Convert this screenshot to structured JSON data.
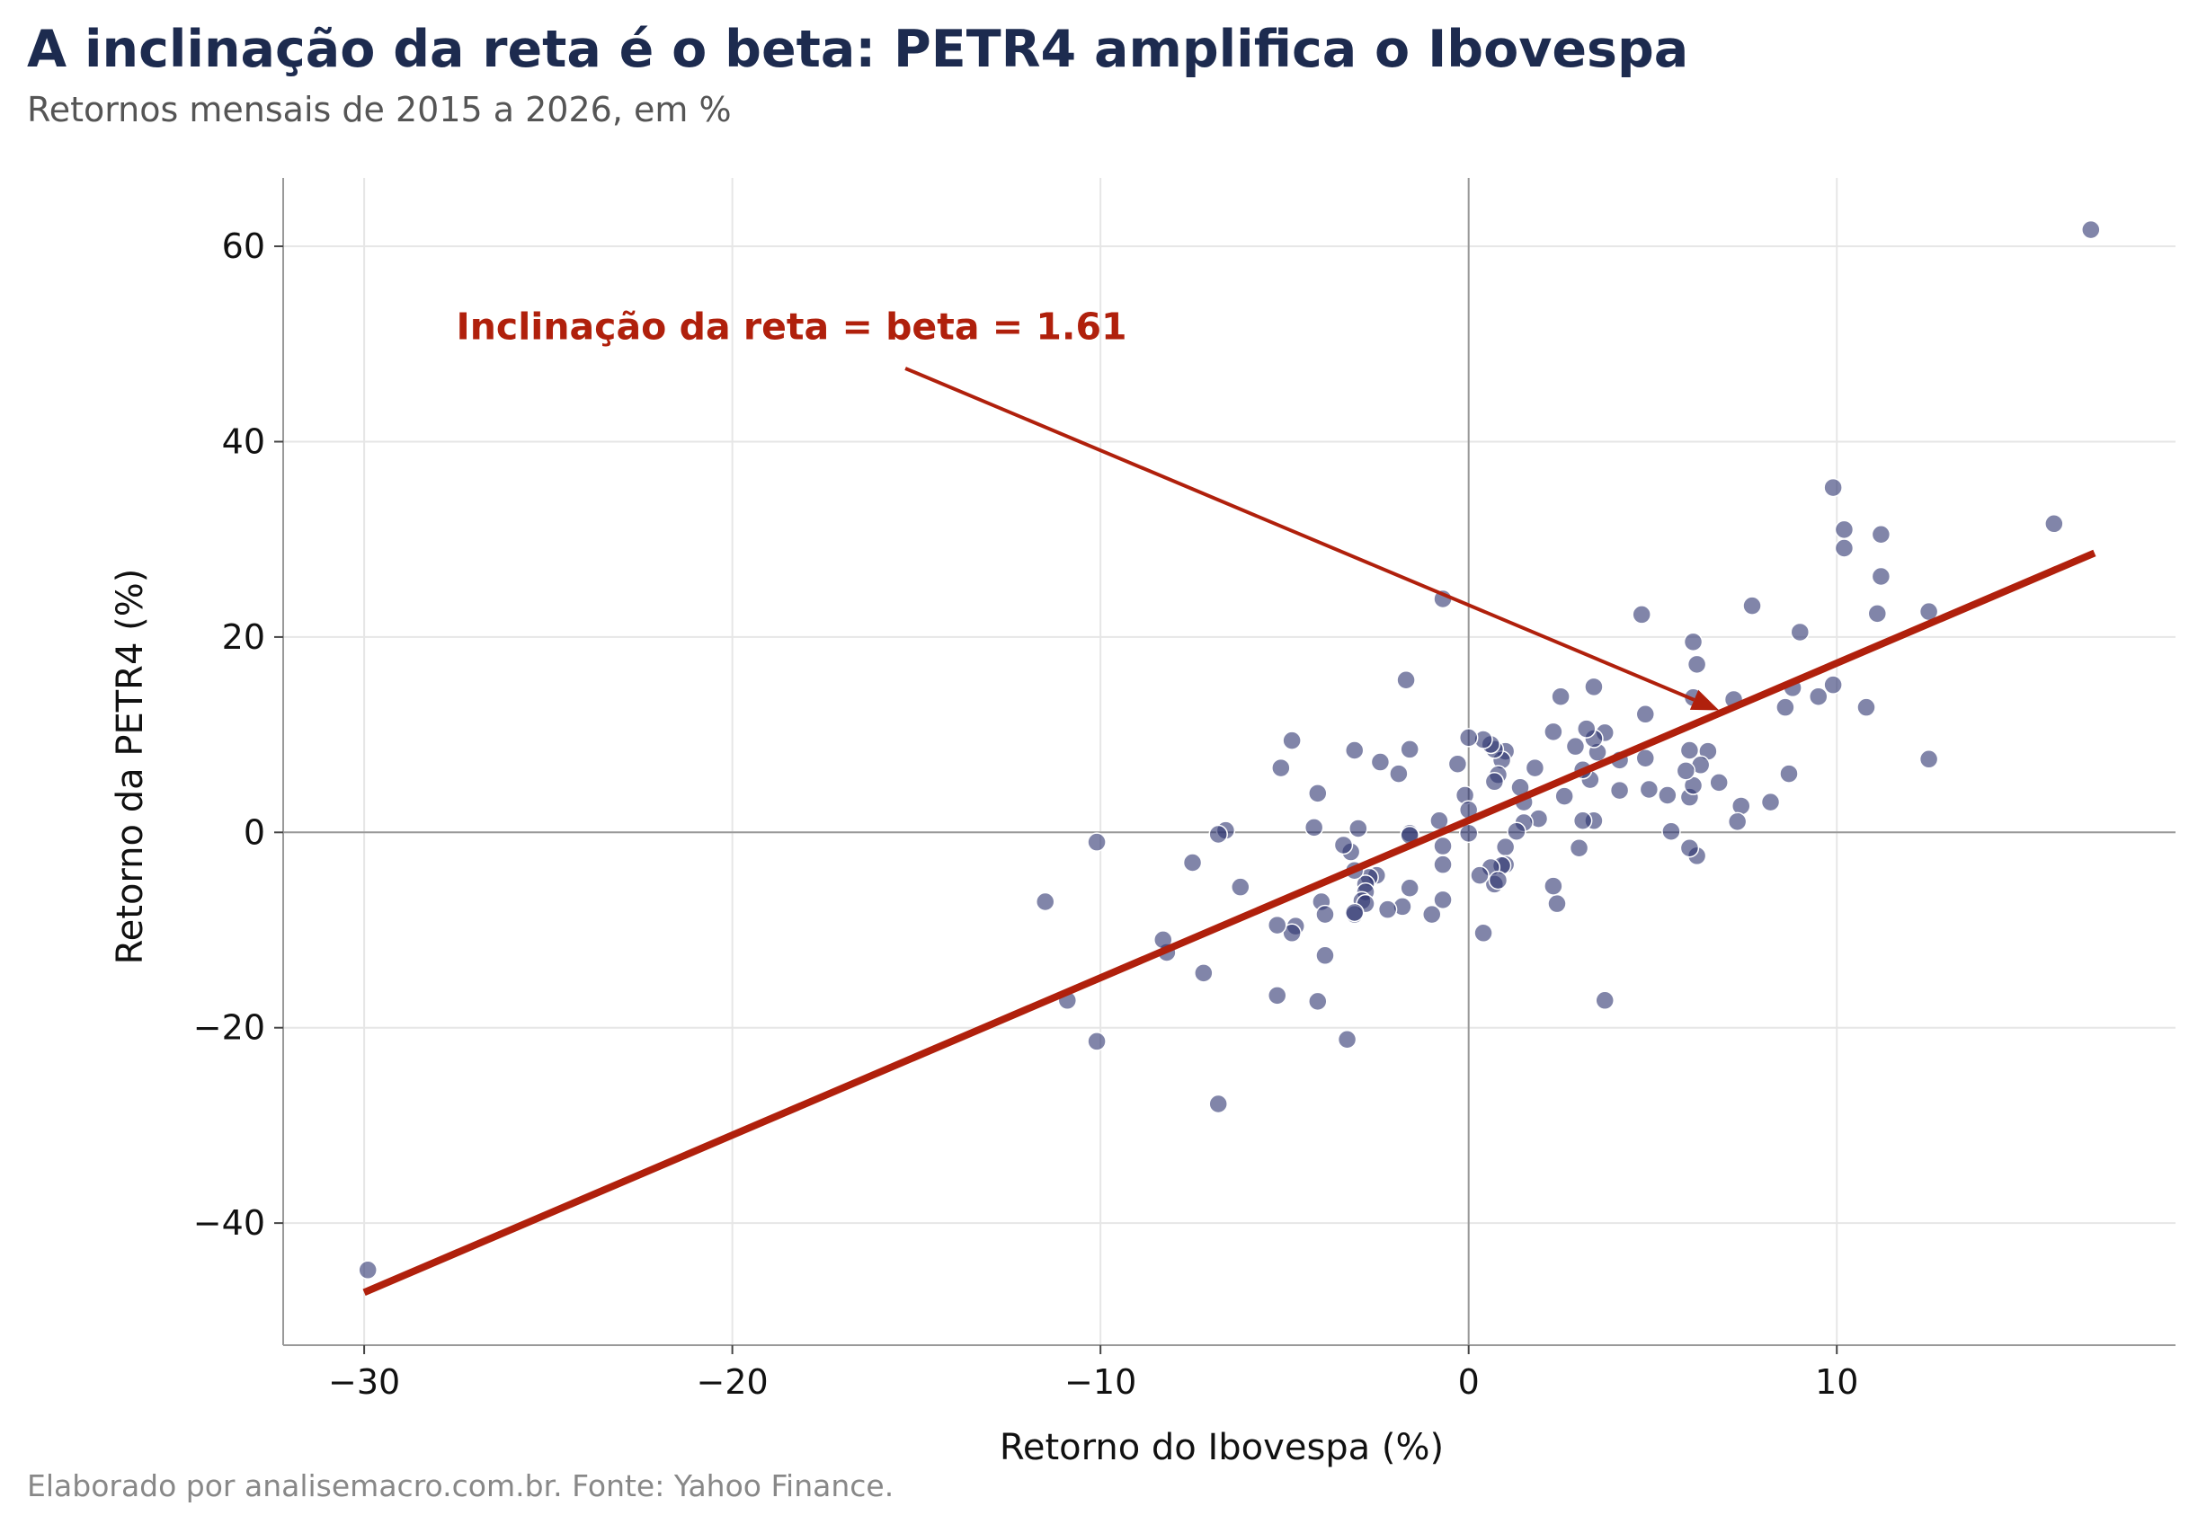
{
  "chart_data": {
    "type": "scatter",
    "title": "A inclinação da reta é o beta: PETR4 amplifica o Ibovespa",
    "subtitle": "Retornos mensais de 2015 a 2026, em %",
    "xlabel": "Retorno do Ibovespa (%)",
    "ylabel": "Retorno da PETR4 (%)",
    "source": "Elaborado por analisemacro.com.br. Fonte: Yahoo Finance.",
    "xlim": [
      -32.2,
      19.2
    ],
    "ylim": [
      -52.5,
      67.0
    ],
    "xticks": [
      -30,
      -20,
      -10,
      0,
      10
    ],
    "yticks": [
      -40,
      -20,
      0,
      20,
      40,
      60
    ],
    "xtick_labels": [
      "−30",
      "−20",
      "−10",
      "0",
      "10"
    ],
    "ytick_labels": [
      "−40",
      "−20",
      "0",
      "20",
      "40",
      "60"
    ],
    "grid": true,
    "annotation": {
      "text": "Inclinação da reta = beta = 1.61",
      "text_anchor": [
        -27.5,
        50.5
      ],
      "arrow_from": [
        -15.3,
        47.5
      ],
      "arrow_to": [
        6.8,
        12.5
      ]
    },
    "colors": {
      "points": "#2d3370",
      "line": "#b0200c",
      "title": "#1d2b4f"
    },
    "regression": {
      "slope": 1.61,
      "x": [
        -30.0,
        17.0
      ],
      "y": [
        -47.1,
        28.6
      ]
    },
    "points": [
      [
        -29.9,
        -44.8
      ],
      [
        16.9,
        61.7
      ],
      [
        15.9,
        31.6
      ],
      [
        12.5,
        22.6
      ],
      [
        12.5,
        7.5
      ],
      [
        9.9,
        35.3
      ],
      [
        10.2,
        31.0
      ],
      [
        10.2,
        29.1
      ],
      [
        11.2,
        30.5
      ],
      [
        11.2,
        26.2
      ],
      [
        11.1,
        22.4
      ],
      [
        10.8,
        12.8
      ],
      [
        9.9,
        15.1
      ],
      [
        9.5,
        13.9
      ],
      [
        9.0,
        20.5
      ],
      [
        8.8,
        14.8
      ],
      [
        8.6,
        12.8
      ],
      [
        8.7,
        6.0
      ],
      [
        8.2,
        3.1
      ],
      [
        7.7,
        23.2
      ],
      [
        7.4,
        2.7
      ],
      [
        7.3,
        1.1
      ],
      [
        7.2,
        13.6
      ],
      [
        6.8,
        5.1
      ],
      [
        6.5,
        8.3
      ],
      [
        6.3,
        6.9
      ],
      [
        6.2,
        17.2
      ],
      [
        6.1,
        19.5
      ],
      [
        6.1,
        13.8
      ],
      [
        6.0,
        8.4
      ],
      [
        6.0,
        3.6
      ],
      [
        6.1,
        4.8
      ],
      [
        5.9,
        6.3
      ],
      [
        6.2,
        -2.4
      ],
      [
        6.0,
        -1.6
      ],
      [
        5.4,
        3.8
      ],
      [
        5.5,
        0.1
      ],
      [
        4.7,
        22.3
      ],
      [
        4.8,
        12.1
      ],
      [
        4.8,
        7.6
      ],
      [
        4.9,
        4.4
      ],
      [
        4.1,
        7.4
      ],
      [
        4.1,
        4.3
      ],
      [
        3.7,
        10.2
      ],
      [
        3.5,
        8.2
      ],
      [
        3.4,
        9.6
      ],
      [
        3.2,
        10.6
      ],
      [
        3.3,
        5.4
      ],
      [
        3.1,
        6.4
      ],
      [
        3.4,
        14.9
      ],
      [
        3.4,
        1.2
      ],
      [
        3.1,
        1.2
      ],
      [
        3.0,
        -1.6
      ],
      [
        3.7,
        -17.2
      ],
      [
        2.5,
        13.9
      ],
      [
        2.3,
        10.3
      ],
      [
        2.9,
        8.8
      ],
      [
        2.6,
        3.7
      ],
      [
        1.8,
        6.6
      ],
      [
        1.9,
        1.4
      ],
      [
        2.4,
        -7.3
      ],
      [
        2.3,
        -5.5
      ],
      [
        1.5,
        3.1
      ],
      [
        1.4,
        4.6
      ],
      [
        1.5,
        1.0
      ],
      [
        1.3,
        0.1
      ],
      [
        1.0,
        8.3
      ],
      [
        0.9,
        7.4
      ],
      [
        0.8,
        5.9
      ],
      [
        0.7,
        8.5
      ],
      [
        0.7,
        5.2
      ],
      [
        0.6,
        9.0
      ],
      [
        0.4,
        9.5
      ],
      [
        1.0,
        -1.5
      ],
      [
        1.0,
        -3.3
      ],
      [
        0.9,
        -3.4
      ],
      [
        0.6,
        -3.6
      ],
      [
        0.7,
        -5.3
      ],
      [
        0.8,
        -4.9
      ],
      [
        0.3,
        -4.4
      ],
      [
        0.4,
        -10.3
      ],
      [
        0.0,
        9.7
      ],
      [
        -0.1,
        3.8
      ],
      [
        0.0,
        2.3
      ],
      [
        0.0,
        -0.1
      ],
      [
        -0.3,
        7.0
      ],
      [
        -0.7,
        23.9
      ],
      [
        -0.8,
        1.2
      ],
      [
        -0.7,
        -1.4
      ],
      [
        -0.7,
        -3.3
      ],
      [
        -0.7,
        -6.9
      ],
      [
        -1.0,
        -8.4
      ],
      [
        -1.6,
        8.5
      ],
      [
        -1.7,
        15.6
      ],
      [
        -1.9,
        6.0
      ],
      [
        -1.6,
        -0.1
      ],
      [
        -1.6,
        -0.3
      ],
      [
        -1.6,
        -5.7
      ],
      [
        -1.8,
        -7.6
      ],
      [
        -2.2,
        -7.9
      ],
      [
        -2.4,
        7.2
      ],
      [
        -2.5,
        -4.4
      ],
      [
        -2.7,
        -4.6
      ],
      [
        -2.8,
        -5.3
      ],
      [
        -2.8,
        -6.1
      ],
      [
        -2.9,
        -7.0
      ],
      [
        -2.8,
        -7.3
      ],
      [
        -3.0,
        0.4
      ],
      [
        -3.1,
        -3.9
      ],
      [
        -3.2,
        -2.0
      ],
      [
        -3.4,
        -1.3
      ],
      [
        -3.1,
        8.4
      ],
      [
        -3.1,
        -8.4
      ],
      [
        -3.1,
        -8.2
      ],
      [
        -3.3,
        -21.2
      ],
      [
        -4.1,
        4.0
      ],
      [
        -4.2,
        0.5
      ],
      [
        -4.0,
        -7.1
      ],
      [
        -3.9,
        -8.4
      ],
      [
        -3.9,
        -12.6
      ],
      [
        -4.1,
        -17.3
      ],
      [
        -4.8,
        9.4
      ],
      [
        -5.1,
        6.6
      ],
      [
        -4.7,
        -9.6
      ],
      [
        -4.8,
        -10.3
      ],
      [
        -5.2,
        -9.5
      ],
      [
        -5.2,
        -16.7
      ],
      [
        -6.2,
        -5.6
      ],
      [
        -6.6,
        0.2
      ],
      [
        -6.8,
        -0.2
      ],
      [
        -6.8,
        -27.8
      ],
      [
        -7.5,
        -3.1
      ],
      [
        -7.2,
        -14.4
      ],
      [
        -8.2,
        -12.3
      ],
      [
        -8.3,
        -11.0
      ],
      [
        -10.1,
        -1.0
      ],
      [
        -10.1,
        -21.4
      ],
      [
        -10.9,
        -17.2
      ],
      [
        -11.5,
        -7.1
      ]
    ]
  }
}
